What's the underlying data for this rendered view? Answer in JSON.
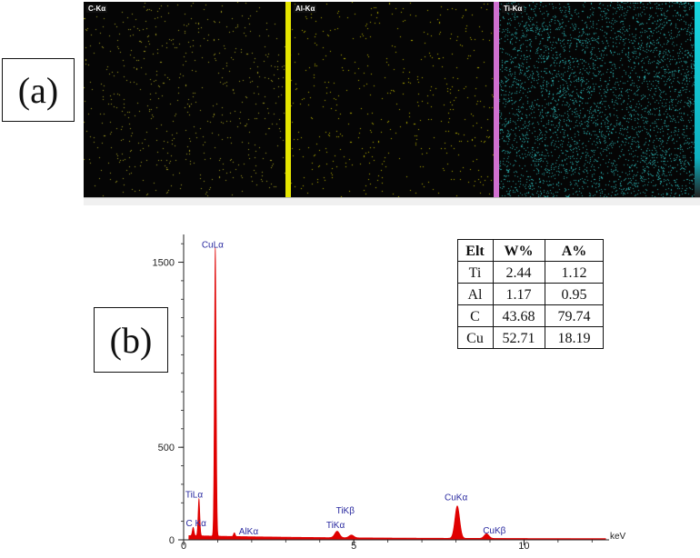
{
  "panel_a": {
    "label": "(a)",
    "maps": [
      {
        "tag": "C-Kα",
        "dot_color": "#a8a020",
        "bar_color": "#0a0a0a",
        "density": 0.05
      },
      {
        "tag": "Al-Kα",
        "dot_color": "#b8b000",
        "bar_color": "#e6e600",
        "density": 0.04
      },
      {
        "tag": "Ti-Kα",
        "dot_color": "#2aa8a8",
        "bar_color": "#d070d0",
        "density": 0.35
      }
    ],
    "right_bar_color": "#19d6e0"
  },
  "panel_b": {
    "label": "(b)",
    "table": {
      "headers": [
        "Elt",
        "W%",
        "A%"
      ],
      "rows": [
        [
          "Ti",
          "2.44",
          "1.12"
        ],
        [
          "Al",
          "1.17",
          "0.95"
        ],
        [
          "C",
          "43.68",
          "79.74"
        ],
        [
          "Cu",
          "52.71",
          "18.19"
        ]
      ]
    }
  },
  "chart_data": {
    "type": "area",
    "xlabel": "keV",
    "ylabel": "",
    "xlim": [
      0,
      12.5
    ],
    "ylim": [
      0,
      1650
    ],
    "x_ticks": [
      "0",
      "5",
      "10"
    ],
    "y_ticks": [
      "0",
      "500",
      "1500"
    ],
    "color": "#e00000",
    "peaks": [
      {
        "label": "C Kα",
        "x": 0.28,
        "y": 45
      },
      {
        "label": "TiLα",
        "x": 0.45,
        "y": 200
      },
      {
        "label": "CuLα",
        "x": 0.93,
        "y": 1560
      },
      {
        "label": "AlKα",
        "x": 1.49,
        "y": 20
      },
      {
        "label": "TiKα",
        "x": 4.51,
        "y": 35
      },
      {
        "label": "TiKβ",
        "x": 4.93,
        "y": 15
      },
      {
        "label": "CuKα",
        "x": 8.04,
        "y": 175
      },
      {
        "label": "CuKβ",
        "x": 8.9,
        "y": 25
      }
    ],
    "label_color": "#2a2aa0"
  }
}
